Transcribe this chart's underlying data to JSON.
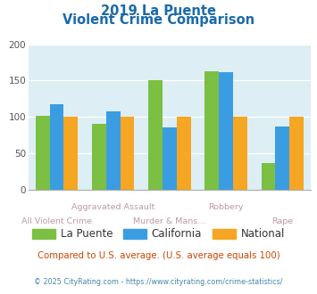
{
  "title_line1": "2019 La Puente",
  "title_line2": "Violent Crime Comparison",
  "categories": [
    "All Violent Crime",
    "Aggravated Assault",
    "Murder & Mans...",
    "Robbery",
    "Rape"
  ],
  "la_puente": [
    101,
    90,
    151,
    163,
    37
  ],
  "california": [
    117,
    107,
    86,
    162,
    87
  ],
  "national": [
    100,
    100,
    100,
    100,
    100
  ],
  "color_la_puente": "#7bc043",
  "color_california": "#3b9de1",
  "color_national": "#f5a623",
  "ylim": [
    0,
    200
  ],
  "yticks": [
    0,
    50,
    100,
    150,
    200
  ],
  "bar_width": 0.25,
  "background_color": "#ddeef5",
  "title_color": "#1a6aab",
  "subtitle": "Compared to U.S. average. (U.S. average equals 100)",
  "subtitle_color": "#cc4400",
  "footer": "© 2025 CityRating.com - https://www.cityrating.com/crime-statistics/",
  "footer_color": "#4488aa",
  "tick_label_color": "#bb99aa",
  "legend_label_color": "#333333",
  "label_row1": [
    "",
    "Aggravated Assault",
    "",
    "Robbery",
    ""
  ],
  "label_row2": [
    "All Violent Crime",
    "",
    "Murder & Mans...",
    "",
    "Rape"
  ]
}
